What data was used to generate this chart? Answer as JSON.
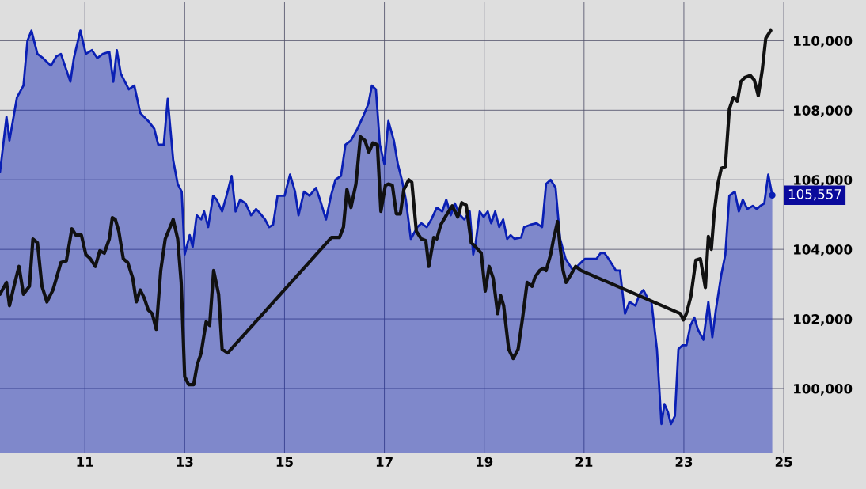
{
  "chart_data": {
    "type": "area",
    "xlim": [
      9.3,
      25.0
    ],
    "xticks": [
      11,
      13,
      15,
      17,
      19,
      21,
      23,
      25
    ],
    "ylim": [
      98150,
      111100
    ],
    "yticks": [
      {
        "value": 100000,
        "label": "100,000"
      },
      {
        "value": 102000,
        "label": "102,000"
      },
      {
        "value": 104000,
        "label": "104,000"
      },
      {
        "value": 106000,
        "label": "106,000"
      },
      {
        "value": 108000,
        "label": "108,000"
      },
      {
        "value": 110000,
        "label": "110,000"
      }
    ],
    "grid": true,
    "legend": false,
    "annotations": [
      {
        "text": "105,557",
        "x": 24.77,
        "y": 105557
      }
    ],
    "series": [
      {
        "color": "#0a1fb4",
        "x": [
          9.3,
          9.43,
          9.49,
          9.64,
          9.77,
          9.85,
          9.93,
          10.05,
          10.16,
          10.32,
          10.43,
          10.52,
          10.71,
          10.78,
          10.91,
          11.02,
          11.14,
          11.25,
          11.36,
          11.49,
          11.57,
          11.64,
          11.72,
          11.88,
          11.99,
          12.11,
          12.27,
          12.39,
          12.47,
          12.58,
          12.66,
          12.77,
          12.86,
          12.94,
          13.0,
          13.1,
          13.16,
          13.24,
          13.33,
          13.39,
          13.47,
          13.57,
          13.64,
          13.75,
          13.86,
          13.94,
          14.02,
          14.11,
          14.22,
          14.33,
          14.43,
          14.52,
          14.61,
          14.69,
          14.77,
          14.86,
          15.0,
          15.11,
          15.21,
          15.28,
          15.39,
          15.5,
          15.63,
          15.71,
          15.83,
          15.93,
          16.02,
          16.13,
          16.22,
          16.33,
          16.46,
          16.57,
          16.68,
          16.75,
          16.83,
          16.91,
          17.0,
          17.08,
          17.19,
          17.27,
          17.35,
          17.43,
          17.53,
          17.66,
          17.74,
          17.85,
          17.94,
          18.05,
          18.16,
          18.24,
          18.33,
          18.41,
          18.52,
          18.6,
          18.71,
          18.78,
          18.83,
          18.91,
          18.99,
          19.07,
          19.14,
          19.22,
          19.3,
          19.38,
          19.46,
          19.53,
          19.61,
          19.74,
          19.8,
          19.93,
          20.05,
          20.16,
          20.24,
          20.33,
          20.43,
          20.52,
          20.63,
          20.78,
          20.94,
          21.02,
          21.14,
          21.25,
          21.33,
          21.41,
          21.49,
          21.64,
          21.72,
          21.82,
          21.91,
          22.03,
          22.11,
          22.19,
          22.27,
          22.35,
          22.46,
          22.55,
          22.61,
          22.68,
          22.74,
          22.82,
          22.89,
          22.97,
          23.05,
          23.13,
          23.21,
          23.28,
          23.39,
          23.49,
          23.57,
          23.64,
          23.75,
          23.83,
          23.91,
          24.02,
          24.1,
          24.18,
          24.27,
          24.38,
          24.46,
          24.53,
          24.61,
          24.69,
          24.77
        ],
        "values": [
          106220,
          107810,
          107130,
          108370,
          108710,
          110000,
          110290,
          109620,
          109500,
          109280,
          109550,
          109620,
          108820,
          109500,
          110290,
          109620,
          109730,
          109500,
          109620,
          109680,
          108820,
          109730,
          109050,
          108600,
          108710,
          107920,
          107690,
          107470,
          107010,
          107010,
          108330,
          106560,
          105880,
          105660,
          103850,
          104410,
          104070,
          104980,
          104860,
          105090,
          104640,
          105540,
          105430,
          105090,
          105660,
          106110,
          105090,
          105430,
          105320,
          104980,
          105160,
          105020,
          104860,
          104640,
          104710,
          105540,
          105540,
          106150,
          105660,
          104980,
          105660,
          105540,
          105770,
          105430,
          104860,
          105540,
          106000,
          106110,
          107010,
          107130,
          107470,
          107810,
          108190,
          108710,
          108600,
          107010,
          106450,
          107690,
          107130,
          106450,
          106000,
          105430,
          104300,
          104640,
          104750,
          104640,
          104860,
          105200,
          105090,
          105430,
          104980,
          105320,
          104980,
          104860,
          105090,
          103850,
          104190,
          105090,
          104930,
          105090,
          104750,
          105090,
          104640,
          104860,
          104300,
          104410,
          104300,
          104340,
          104640,
          104710,
          104750,
          104640,
          105880,
          106000,
          105770,
          104300,
          103730,
          103390,
          103620,
          103730,
          103730,
          103730,
          103890,
          103890,
          103730,
          103390,
          103390,
          102150,
          102490,
          102380,
          102710,
          102830,
          102600,
          102490,
          101130,
          98980,
          99550,
          99320,
          98980,
          99210,
          101130,
          101240,
          101240,
          101810,
          102040,
          101700,
          101400,
          102490,
          101470,
          102260,
          103280,
          103850,
          105540,
          105660,
          105090,
          105430,
          105160,
          105250,
          105160,
          105250,
          105320,
          106150,
          105557
        ]
      },
      {
        "type": "line",
        "color": "#111111",
        "x": [
          9.3,
          9.43,
          9.49,
          9.58,
          9.68,
          9.77,
          9.89,
          9.96,
          10.05,
          10.14,
          10.24,
          10.36,
          10.43,
          10.52,
          10.63,
          10.74,
          10.82,
          10.93,
          11.02,
          11.11,
          11.21,
          11.3,
          11.39,
          11.49,
          11.55,
          11.61,
          11.68,
          11.77,
          11.86,
          11.96,
          12.03,
          12.11,
          12.19,
          12.27,
          12.35,
          12.43,
          12.52,
          12.61,
          12.77,
          12.86,
          12.93,
          13.0,
          13.08,
          13.18,
          13.25,
          13.33,
          13.43,
          13.5,
          13.58,
          13.68,
          13.75,
          13.86,
          15.94,
          16.1,
          16.18,
          16.25,
          16.33,
          16.43,
          16.52,
          16.61,
          16.69,
          16.77,
          16.86,
          16.93,
          17.02,
          17.08,
          17.16,
          17.24,
          17.32,
          17.39,
          17.49,
          17.55,
          17.64,
          17.74,
          17.83,
          17.89,
          17.99,
          18.05,
          18.13,
          18.24,
          18.36,
          18.47,
          18.55,
          18.64,
          18.74,
          18.83,
          18.94,
          19.02,
          19.1,
          19.18,
          19.27,
          19.33,
          19.39,
          19.49,
          19.58,
          19.68,
          19.77,
          19.86,
          19.96,
          20.02,
          20.11,
          20.18,
          20.24,
          20.33,
          20.39,
          20.47,
          20.52,
          20.58,
          20.64,
          20.74,
          20.83,
          20.94,
          22.93,
          22.99,
          23.05,
          23.14,
          23.24,
          23.33,
          23.43,
          23.49,
          23.55,
          23.61,
          23.68,
          23.75,
          23.83,
          23.91,
          23.99,
          24.07,
          24.14,
          24.22,
          24.33,
          24.41,
          24.49,
          24.57,
          24.64,
          24.74
        ],
        "values": [
          102710,
          103050,
          102380,
          102940,
          103510,
          102710,
          102940,
          104300,
          104190,
          102940,
          102490,
          102830,
          103170,
          103620,
          103670,
          104590,
          104410,
          104410,
          103850,
          103730,
          103510,
          103960,
          103890,
          104300,
          104910,
          104860,
          104520,
          103730,
          103620,
          103170,
          102490,
          102830,
          102600,
          102260,
          102150,
          101700,
          103390,
          104300,
          104860,
          104300,
          103050,
          100340,
          100110,
          100110,
          100680,
          101020,
          101920,
          101810,
          103390,
          102710,
          101130,
          101020,
          104340,
          104340,
          104640,
          105720,
          105200,
          105880,
          107240,
          107130,
          106790,
          107060,
          107010,
          105090,
          105840,
          105880,
          105840,
          105020,
          105020,
          105720,
          106000,
          105930,
          104520,
          104300,
          104250,
          103510,
          104340,
          104300,
          104710,
          104980,
          105250,
          104930,
          105340,
          105270,
          104190,
          104070,
          103890,
          102800,
          103510,
          103170,
          102150,
          102670,
          102380,
          101130,
          100860,
          101130,
          102040,
          103050,
          102940,
          103210,
          103390,
          103460,
          103390,
          103850,
          104300,
          104800,
          104070,
          103390,
          103050,
          103280,
          103510,
          103390,
          102150,
          101970,
          102150,
          102650,
          103690,
          103730,
          102900,
          104370,
          104000,
          105090,
          105880,
          106330,
          106380,
          108030,
          108370,
          108260,
          108820,
          108940,
          109000,
          108870,
          108420,
          109160,
          110070,
          110290
        ]
      }
    ]
  }
}
